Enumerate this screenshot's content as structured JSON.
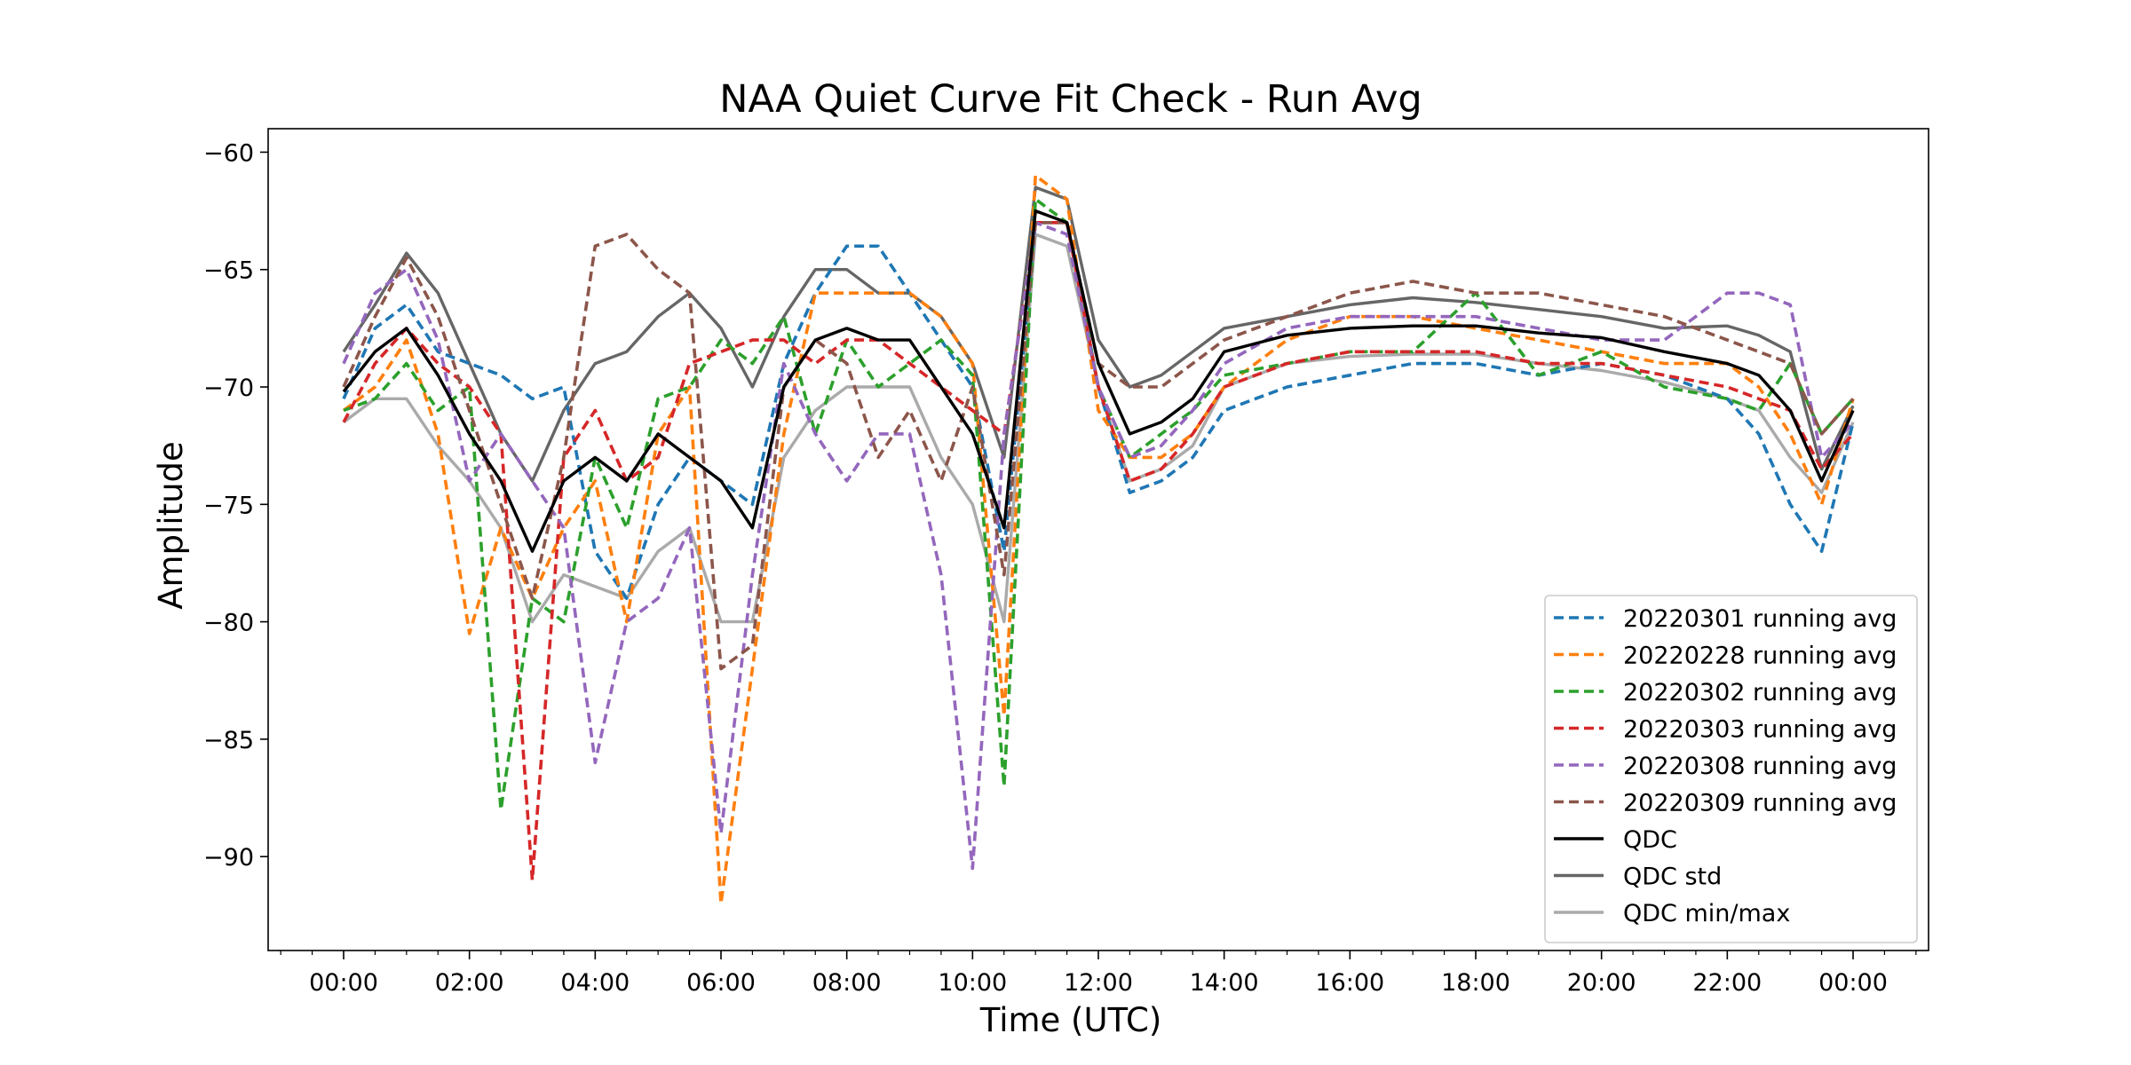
{
  "chart_data": {
    "type": "line",
    "title": "NAA Quiet Curve Fit Check - Run Avg",
    "xlabel": "Time (UTC)",
    "ylabel": "Amplitude",
    "x_unit": "hours (UTC)",
    "xlim": [
      -1.2,
      25.2
    ],
    "ylim": [
      -94.0,
      -59.0
    ],
    "x_tick_labels": [
      "00:00",
      "02:00",
      "04:00",
      "06:00",
      "08:00",
      "10:00",
      "12:00",
      "14:00",
      "16:00",
      "18:00",
      "20:00",
      "22:00",
      "00:00"
    ],
    "x_ticks": [
      0,
      2,
      4,
      6,
      8,
      10,
      12,
      14,
      16,
      18,
      20,
      22,
      24
    ],
    "y_ticks": [
      -90,
      -85,
      -80,
      -75,
      -70,
      -65,
      -60
    ],
    "y_tick_labels": [
      "−90",
      "−85",
      "−80",
      "−75",
      "−70",
      "−65",
      "−60"
    ],
    "grid": false,
    "legend_position": "lower-right",
    "x": [
      0,
      0.5,
      1,
      1.5,
      2,
      2.5,
      3,
      3.5,
      4,
      4.5,
      5,
      5.5,
      6,
      6.5,
      7,
      7.5,
      8,
      8.5,
      9,
      9.5,
      10,
      10.5,
      11,
      11.5,
      12,
      12.5,
      13,
      13.5,
      14,
      15,
      16,
      17,
      18,
      19,
      20,
      21,
      22,
      22.5,
      23,
      23.5,
      24
    ],
    "series": [
      {
        "name": "20220301 running avg",
        "color": "#1f77b4",
        "style": "dashed",
        "values": [
          -70.5,
          -67.5,
          -66.5,
          -68.5,
          -69,
          -69.5,
          -70.5,
          -70,
          -77,
          -79,
          -75,
          -73,
          -74,
          -75,
          -69,
          -66,
          -64,
          -64,
          -66,
          -68,
          -70,
          -77,
          -63,
          -63,
          -70,
          -74.5,
          -74,
          -73,
          -71,
          -70,
          -69.5,
          -69,
          -69,
          -69.5,
          -69,
          -69.5,
          -70.5,
          -72,
          -75,
          -77,
          -71.5
        ]
      },
      {
        "name": "20220228 running avg",
        "color": "#ff7f0e",
        "style": "dashed",
        "values": [
          -71,
          -70,
          -68,
          -72,
          -80.5,
          -76,
          -79,
          -76,
          -74,
          -80,
          -72,
          -70,
          -92,
          -82,
          -72,
          -66,
          -66,
          -66,
          -66,
          -67,
          -69,
          -84,
          -61,
          -62,
          -71,
          -73,
          -73,
          -72,
          -70,
          -68,
          -67,
          -67,
          -67.5,
          -68,
          -68.5,
          -69,
          -69,
          -70,
          -72,
          -75,
          -70.5
        ]
      },
      {
        "name": "20220302 running avg",
        "color": "#2ca02c",
        "style": "dashed",
        "values": [
          -71,
          -70.5,
          -69,
          -71,
          -70,
          -88,
          -79,
          -80,
          -73,
          -76,
          -70.5,
          -70,
          -68,
          -69,
          -67,
          -72,
          -68,
          -70,
          -69,
          -68,
          -69.5,
          -87,
          -62,
          -63,
          -70,
          -73,
          -72,
          -71,
          -69.5,
          -69,
          -68.5,
          -68.5,
          -66,
          -69.5,
          -68.5,
          -70,
          -70.5,
          -71,
          -69,
          -72,
          -70.5
        ]
      },
      {
        "name": "20220303 running avg",
        "color": "#d62728",
        "style": "dashed",
        "values": [
          -71.5,
          -69,
          -67.5,
          -69,
          -70,
          -72,
          -91,
          -73,
          -71,
          -74,
          -73,
          -69,
          -68.5,
          -68,
          -68,
          -69,
          -68,
          -68,
          -69,
          -70,
          -71,
          -72,
          -63,
          -63,
          -70,
          -74,
          -73.5,
          -72,
          -70,
          -69,
          -68.5,
          -68.5,
          -68.5,
          -69,
          -69,
          -69.5,
          -70,
          -70.5,
          -71,
          -73.5,
          -72
        ]
      },
      {
        "name": "20220308 running avg",
        "color": "#9467bd",
        "style": "dashed",
        "values": [
          -69,
          -66,
          -65,
          -68,
          -74,
          -72,
          -74,
          -76,
          -86,
          -80,
          -79,
          -76,
          -89,
          -78,
          -69,
          -72,
          -74,
          -72,
          -72,
          -78,
          -90.5,
          -72,
          -63,
          -63.5,
          -70,
          -73,
          -72.5,
          -71,
          -69,
          -67.5,
          -67,
          -67,
          -67,
          -67.5,
          -68,
          -68,
          -66,
          -66,
          -66.5,
          -73,
          -71.5
        ]
      },
      {
        "name": "20220309 running avg",
        "color": "#8c564b",
        "style": "dashed",
        "values": [
          -70,
          -67,
          -64.5,
          -67,
          -71,
          -75,
          -79,
          -73,
          -64,
          -63.5,
          -65,
          -66,
          -82,
          -81,
          -70,
          -68,
          -69,
          -73,
          -71,
          -74,
          -70,
          -78,
          -63,
          -63,
          -69,
          -70,
          -70,
          -69,
          -68,
          -67,
          -66,
          -65.5,
          -66,
          -66,
          -66.5,
          -67,
          -68,
          -68.5,
          -69,
          -72,
          -70.5
        ]
      },
      {
        "name": "QDC",
        "color": "#000000",
        "style": "solid",
        "values": [
          -70.2,
          -68.5,
          -67.5,
          -69.5,
          -72,
          -74,
          -77,
          -74,
          -73,
          -74,
          -72,
          -73,
          -74,
          -76,
          -70,
          -68,
          -67.5,
          -68,
          -68,
          -70,
          -72,
          -76,
          -62.5,
          -63,
          -69,
          -72,
          -71.5,
          -70.5,
          -68.5,
          -67.8,
          -67.5,
          -67.4,
          -67.4,
          -67.7,
          -67.9,
          -68.5,
          -69,
          -69.5,
          -71,
          -74,
          -71
        ]
      },
      {
        "name": "QDC std",
        "color": "#666666",
        "style": "solid",
        "values": [
          -68.5,
          -66.5,
          -64.3,
          -66,
          -69,
          -72,
          -74,
          -71,
          -69,
          -68.5,
          -67,
          -66,
          -67.5,
          -70,
          -67,
          -65,
          -65,
          -66,
          -66,
          -67,
          -69,
          -73,
          -61.5,
          -62,
          -68,
          -70,
          -69.5,
          -68.5,
          -67.5,
          -67,
          -66.5,
          -66.2,
          -66.4,
          -66.7,
          -67,
          -67.5,
          -67.4,
          -67.8,
          -68.5,
          -73.5,
          -70.8
        ]
      },
      {
        "name": "QDC min/max",
        "color": "#aaaaaa",
        "style": "solid",
        "values": [
          -71.5,
          -70.5,
          -70.5,
          -72.5,
          -74,
          -76,
          -80,
          -78,
          -78.5,
          -79,
          -77,
          -76,
          -80,
          -80,
          -73,
          -71,
          -70,
          -70,
          -70,
          -73,
          -75,
          -80,
          -63.5,
          -64,
          -70,
          -74,
          -73.5,
          -72.5,
          -70,
          -69,
          -68.7,
          -68.6,
          -68.6,
          -69,
          -69.3,
          -69.8,
          -70.5,
          -71,
          -73,
          -74.5,
          -71.5
        ]
      }
    ]
  }
}
